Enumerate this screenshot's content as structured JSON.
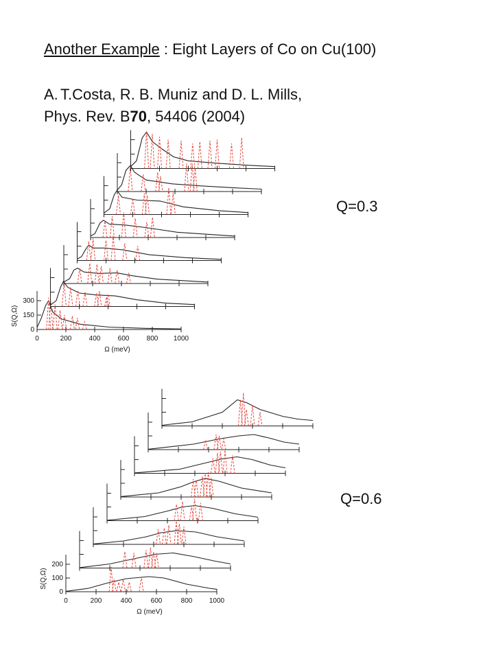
{
  "header": {
    "title_link": "Another Example",
    "title_rest": " :  Eight Layers of Co on Cu(100)",
    "ref_num": "A.",
    "ref_line1": "T.Costa, R. B. Muniz and D. L. Mills,",
    "ref_line2_a": "Phys. Rev.  B",
    "ref_line2_vol": "70",
    "ref_line2_b": ", 54406 (2004)"
  },
  "chart_data": [
    {
      "type": "line",
      "label": "Q=0.3",
      "layers": 8,
      "xlabel": "Ω (meV)",
      "ylabel": "S(Q,Ω)",
      "xlim": [
        0,
        1000
      ],
      "ylim": [
        0,
        400
      ],
      "x_ticks": [
        "0",
        "200",
        "400",
        "600",
        "800",
        "1000"
      ],
      "y_ticks": [
        "0",
        "150",
        "300"
      ],
      "y_tick_values": [
        0,
        150,
        300
      ],
      "series": [
        {
          "curve": [
            [
              0,
              20
            ],
            [
              30,
              120
            ],
            [
              60,
              250
            ],
            [
              80,
              300
            ],
            [
              110,
              180
            ],
            [
              170,
              110
            ],
            [
              300,
              55
            ],
            [
              500,
              25
            ],
            [
              750,
              12
            ],
            [
              1000,
              6
            ]
          ],
          "spikes": [
            [
              80,
              330
            ],
            [
              95,
              300
            ],
            [
              125,
              260
            ],
            [
              160,
              200
            ],
            [
              190,
              150
            ],
            [
              245,
              140
            ],
            [
              280,
              120
            ],
            [
              330,
              80
            ]
          ]
        },
        {
          "curve": [
            [
              0,
              15
            ],
            [
              40,
              60
            ],
            [
              70,
              200
            ],
            [
              90,
              260
            ],
            [
              120,
              200
            ],
            [
              200,
              140
            ],
            [
              320,
              120
            ],
            [
              450,
              110
            ],
            [
              600,
              70
            ],
            [
              800,
              35
            ],
            [
              1000,
              20
            ]
          ],
          "spikes": [
            [
              95,
              250
            ],
            [
              140,
              200
            ],
            [
              190,
              170
            ],
            [
              240,
              150
            ],
            [
              320,
              140
            ],
            [
              340,
              160
            ],
            [
              390,
              100
            ],
            [
              400,
              130
            ]
          ]
        },
        {
          "curve": [
            [
              0,
              15
            ],
            [
              40,
              50
            ],
            [
              70,
              140
            ],
            [
              95,
              160
            ],
            [
              140,
              120
            ],
            [
              240,
              105
            ],
            [
              370,
              110
            ],
            [
              480,
              80
            ],
            [
              650,
              45
            ],
            [
              1000,
              15
            ]
          ],
          "spikes": [
            [
              110,
              160
            ],
            [
              180,
              210
            ],
            [
              230,
              200
            ],
            [
              260,
              180
            ],
            [
              320,
              160
            ],
            [
              370,
              140
            ],
            [
              450,
              110
            ]
          ]
        },
        {
          "curve": [
            [
              0,
              15
            ],
            [
              30,
              40
            ],
            [
              60,
              120
            ],
            [
              80,
              160
            ],
            [
              110,
              130
            ],
            [
              190,
              130
            ],
            [
              320,
              110
            ],
            [
              500,
              60
            ],
            [
              750,
              30
            ],
            [
              1000,
              12
            ]
          ],
          "spikes": [
            [
              80,
              200
            ],
            [
              110,
              230
            ],
            [
              200,
              210
            ],
            [
              250,
              260
            ],
            [
              330,
              180
            ],
            [
              420,
              150
            ]
          ]
        },
        {
          "curve": [
            [
              0,
              15
            ],
            [
              30,
              40
            ],
            [
              65,
              150
            ],
            [
              90,
              180
            ],
            [
              130,
              140
            ],
            [
              240,
              130
            ],
            [
              400,
              100
            ],
            [
              600,
              55
            ],
            [
              1000,
              15
            ]
          ],
          "spikes": [
            [
              100,
              170
            ],
            [
              150,
              220
            ],
            [
              230,
              260
            ],
            [
              310,
              200
            ],
            [
              390,
              160
            ],
            [
              430,
              210
            ]
          ]
        },
        {
          "curve": [
            [
              0,
              15
            ],
            [
              40,
              60
            ],
            [
              70,
              200
            ],
            [
              90,
              250
            ],
            [
              125,
              180
            ],
            [
              230,
              150
            ],
            [
              390,
              140
            ],
            [
              550,
              80
            ],
            [
              800,
              40
            ],
            [
              1000,
              20
            ]
          ],
          "spikes": [
            [
              100,
              200
            ],
            [
              200,
              170
            ],
            [
              280,
              220
            ],
            [
              300,
              200
            ],
            [
              450,
              280
            ],
            [
              480,
              230
            ]
          ]
        },
        {
          "curve": [
            [
              0,
              15
            ],
            [
              30,
              70
            ],
            [
              60,
              220
            ],
            [
              90,
              270
            ],
            [
              120,
              200
            ],
            [
              200,
              120
            ],
            [
              380,
              80
            ],
            [
              560,
              60
            ],
            [
              800,
              40
            ],
            [
              1000,
              25
            ]
          ],
          "spikes": [
            [
              90,
              250
            ],
            [
              180,
              180
            ],
            [
              280,
              200
            ],
            [
              300,
              160
            ],
            [
              480,
              290
            ],
            [
              520,
              290
            ],
            [
              540,
              240
            ]
          ]
        },
        {
          "curve": [
            [
              0,
              20
            ],
            [
              40,
              80
            ],
            [
              80,
              320
            ],
            [
              110,
              380
            ],
            [
              150,
              280
            ],
            [
              220,
              200
            ],
            [
              300,
              120
            ],
            [
              400,
              80
            ],
            [
              600,
              55
            ],
            [
              800,
              35
            ],
            [
              1000,
              20
            ]
          ],
          "spikes": [
            [
              110,
              390
            ],
            [
              150,
              360
            ],
            [
              200,
              330
            ],
            [
              260,
              300
            ],
            [
              350,
              290
            ],
            [
              430,
              260
            ],
            [
              480,
              280
            ],
            [
              550,
              290
            ],
            [
              600,
              300
            ],
            [
              700,
              260
            ],
            [
              770,
              320
            ]
          ]
        }
      ]
    },
    {
      "type": "line",
      "label": "Q=0.6",
      "layers": 8,
      "xlabel": "Ω (meV)",
      "ylabel": "S(Q,Ω)",
      "xlim": [
        0,
        1000
      ],
      "ylim": [
        0,
        270
      ],
      "x_ticks": [
        "0",
        "200",
        "400",
        "600",
        "800",
        "1000"
      ],
      "y_ticks": [
        "0",
        "100",
        "200"
      ],
      "y_tick_values": [
        0,
        100,
        200
      ],
      "series": [
        {
          "curve": [
            [
              0,
              3
            ],
            [
              150,
              25
            ],
            [
              280,
              65
            ],
            [
              400,
              95
            ],
            [
              550,
              110
            ],
            [
              650,
              100
            ],
            [
              800,
              55
            ],
            [
              950,
              25
            ],
            [
              1000,
              18
            ]
          ],
          "spikes": [
            [
              300,
              180
            ],
            [
              320,
              90
            ],
            [
              350,
              70
            ],
            [
              380,
              90
            ],
            [
              420,
              70
            ],
            [
              500,
              110
            ]
          ]
        },
        {
          "curve": [
            [
              0,
              3
            ],
            [
              200,
              30
            ],
            [
              350,
              65
            ],
            [
              500,
              100
            ],
            [
              620,
              110
            ],
            [
              750,
              85
            ],
            [
              900,
              50
            ],
            [
              1000,
              30
            ]
          ],
          "spikes": [
            [
              300,
              120
            ],
            [
              360,
              110
            ],
            [
              440,
              130
            ],
            [
              470,
              150
            ],
            [
              490,
              120
            ],
            [
              510,
              110
            ]
          ]
        },
        {
          "curve": [
            [
              0,
              3
            ],
            [
              200,
              25
            ],
            [
              350,
              55
            ],
            [
              450,
              85
            ],
            [
              550,
              100
            ],
            [
              680,
              90
            ],
            [
              820,
              55
            ],
            [
              1000,
              25
            ]
          ],
          "spikes": [
            [
              430,
              110
            ],
            [
              470,
              120
            ],
            [
              500,
              140
            ],
            [
              550,
              170
            ],
            [
              570,
              150
            ],
            [
              600,
              130
            ]
          ]
        },
        {
          "curve": [
            [
              0,
              3
            ],
            [
              250,
              30
            ],
            [
              400,
              70
            ],
            [
              500,
              100
            ],
            [
              580,
              110
            ],
            [
              700,
              90
            ],
            [
              850,
              50
            ],
            [
              1000,
              25
            ]
          ],
          "spikes": [
            [
              460,
              120
            ],
            [
              500,
              140
            ],
            [
              560,
              110
            ],
            [
              580,
              160
            ],
            [
              620,
              130
            ]
          ]
        },
        {
          "curve": [
            [
              0,
              3
            ],
            [
              250,
              30
            ],
            [
              400,
              75
            ],
            [
              480,
              110
            ],
            [
              560,
              135
            ],
            [
              650,
              115
            ],
            [
              800,
              65
            ],
            [
              1000,
              30
            ]
          ],
          "spikes": [
            [
              480,
              130
            ],
            [
              500,
              120
            ],
            [
              540,
              150
            ],
            [
              560,
              170
            ],
            [
              580,
              180
            ],
            [
              600,
              140
            ]
          ]
        },
        {
          "curve": [
            [
              0,
              3
            ],
            [
              300,
              30
            ],
            [
              450,
              70
            ],
            [
              580,
              105
            ],
            [
              680,
              120
            ],
            [
              780,
              100
            ],
            [
              900,
              60
            ],
            [
              1000,
              40
            ]
          ],
          "spikes": [
            [
              520,
              110
            ],
            [
              550,
              150
            ],
            [
              570,
              160
            ],
            [
              600,
              170
            ],
            [
              650,
              130
            ]
          ]
        },
        {
          "curve": [
            [
              0,
              3
            ],
            [
              300,
              40
            ],
            [
              480,
              80
            ],
            [
              600,
              100
            ],
            [
              700,
              110
            ],
            [
              800,
              85
            ],
            [
              900,
              55
            ],
            [
              1000,
              40
            ]
          ],
          "spikes": [
            [
              380,
              70
            ],
            [
              450,
              110
            ],
            [
              470,
              100
            ],
            [
              500,
              80
            ]
          ]
        },
        {
          "curve": [
            [
              0,
              5
            ],
            [
              200,
              30
            ],
            [
              400,
              100
            ],
            [
              500,
              190
            ],
            [
              560,
              170
            ],
            [
              650,
              120
            ],
            [
              800,
              70
            ],
            [
              900,
              50
            ],
            [
              1000,
              40
            ]
          ],
          "spikes": [
            [
              520,
              190
            ],
            [
              540,
              240
            ],
            [
              560,
              120
            ],
            [
              600,
              150
            ],
            [
              650,
              100
            ]
          ]
        }
      ]
    }
  ]
}
